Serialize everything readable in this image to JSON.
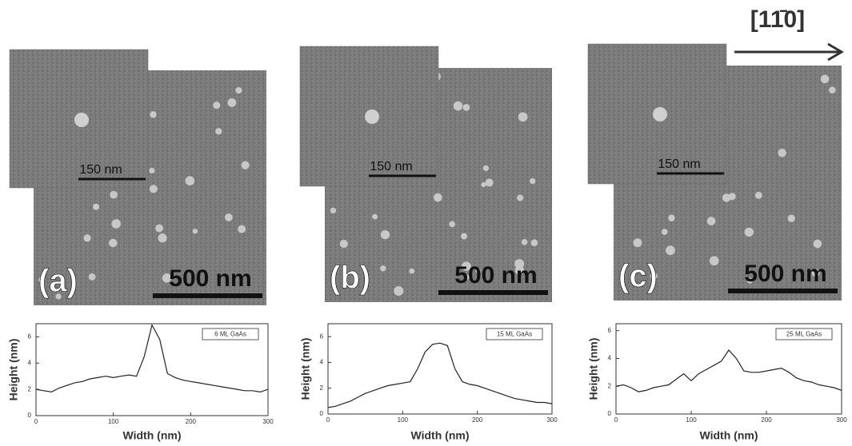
{
  "direction": "[11̄0]",
  "panels": [
    {
      "label": "(a)",
      "inset_scale": "150 nm",
      "scale": "500 nm"
    },
    {
      "label": "(b)",
      "inset_scale": "150 nm",
      "scale": "500 nm"
    },
    {
      "label": "(c)",
      "inset_scale": "150 nm",
      "scale": "500 nm"
    }
  ],
  "chart_data": [
    {
      "type": "line",
      "x_label": "Width (nm)",
      "y_label": "Height (nm)",
      "x": [
        0,
        10,
        20,
        30,
        40,
        50,
        60,
        70,
        80,
        90,
        100,
        110,
        120,
        130,
        140,
        150,
        160,
        170,
        180,
        190,
        200,
        210,
        220,
        230,
        240,
        250,
        260,
        270,
        280,
        290,
        300
      ],
      "series": [
        {
          "name": "6 ML GaAs",
          "color": "#222222",
          "values": [
            2.0,
            1.9,
            1.8,
            2.1,
            2.3,
            2.5,
            2.6,
            2.8,
            2.9,
            3.0,
            2.9,
            3.0,
            3.1,
            3.0,
            4.5,
            6.9,
            5.8,
            3.2,
            2.9,
            2.7,
            2.6,
            2.5,
            2.4,
            2.3,
            2.2,
            2.1,
            2.0,
            1.9,
            1.9,
            1.8,
            2.0
          ]
        }
      ],
      "xlim": [
        0,
        300
      ],
      "ylim": [
        0,
        7
      ],
      "xticks": [
        0,
        100,
        200,
        300
      ],
      "yticks": [
        0,
        2,
        4,
        6
      ]
    },
    {
      "type": "line",
      "x_label": "Width (nm)",
      "y_label": "Height (nm)",
      "x": [
        0,
        10,
        20,
        30,
        40,
        50,
        60,
        70,
        80,
        90,
        100,
        110,
        120,
        130,
        140,
        150,
        160,
        170,
        180,
        190,
        200,
        210,
        220,
        230,
        240,
        250,
        260,
        270,
        280,
        290,
        300
      ],
      "series": [
        {
          "name": "15 ML GaAs",
          "color": "#222222",
          "values": [
            0.5,
            0.6,
            0.8,
            1.0,
            1.3,
            1.6,
            1.8,
            2.0,
            2.2,
            2.3,
            2.4,
            2.5,
            3.5,
            4.8,
            5.4,
            5.5,
            5.3,
            3.5,
            2.5,
            2.3,
            2.2,
            2.0,
            1.8,
            1.6,
            1.4,
            1.2,
            1.1,
            1.0,
            0.9,
            0.9,
            0.8
          ]
        }
      ],
      "xlim": [
        0,
        300
      ],
      "ylim": [
        0,
        7
      ],
      "xticks": [
        0,
        100,
        200,
        300
      ],
      "yticks": [
        0,
        2,
        4,
        6
      ]
    },
    {
      "type": "line",
      "x_label": "Width (nm)",
      "y_label": "Height (nm)",
      "x": [
        0,
        10,
        20,
        30,
        40,
        50,
        60,
        70,
        80,
        90,
        100,
        110,
        120,
        130,
        140,
        150,
        160,
        170,
        180,
        190,
        200,
        210,
        220,
        230,
        240,
        250,
        260,
        270,
        280,
        290,
        300
      ],
      "series": [
        {
          "name": "25 ML GaAs",
          "color": "#222222",
          "values": [
            2.0,
            2.1,
            1.9,
            1.6,
            1.7,
            1.9,
            2.0,
            2.1,
            2.5,
            2.9,
            2.4,
            2.9,
            3.2,
            3.5,
            3.8,
            4.6,
            4.0,
            3.1,
            3.0,
            3.0,
            3.1,
            3.2,
            3.3,
            3.0,
            2.6,
            2.4,
            2.3,
            2.1,
            2.0,
            1.9,
            1.7
          ]
        }
      ],
      "xlim": [
        0,
        300
      ],
      "ylim": [
        0,
        6.5
      ],
      "xticks": [
        0,
        100,
        200,
        300
      ],
      "yticks": [
        0,
        2,
        4,
        6
      ]
    }
  ]
}
